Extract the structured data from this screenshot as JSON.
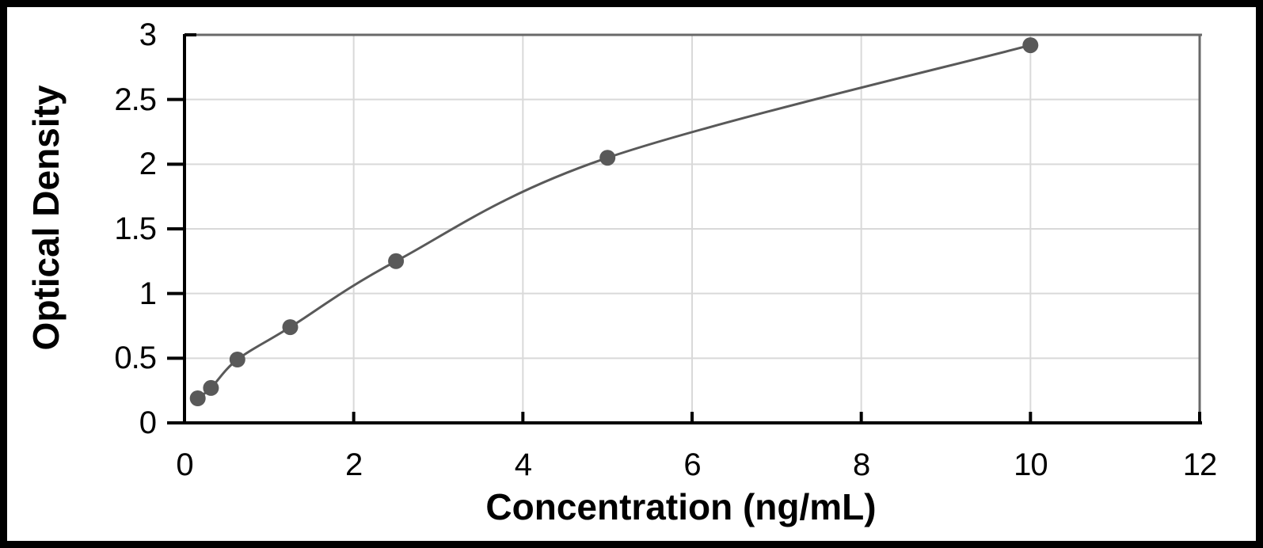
{
  "chart_data": {
    "type": "scatter",
    "description": "Standard curve: smooth line with round markers",
    "xlabel": "Concentration (ng/mL)",
    "ylabel": "Optical Density",
    "xlim": [
      0,
      12
    ],
    "ylim": [
      0,
      3
    ],
    "x_ticks": [
      0,
      2,
      4,
      6,
      8,
      10,
      12
    ],
    "x_tick_labels": [
      "0",
      "2",
      "4",
      "6",
      "8",
      "10",
      "12"
    ],
    "y_ticks": [
      0,
      0.5,
      1,
      1.5,
      2,
      2.5,
      3
    ],
    "y_tick_labels": [
      "0",
      "0.5",
      "1",
      "1.5",
      "2",
      "2.5",
      "3"
    ],
    "grid": true,
    "legend": false,
    "series": [
      {
        "name": "standard-curve",
        "marker": "circle",
        "line": "smooth",
        "points": [
          {
            "x": 0.156,
            "y": 0.19
          },
          {
            "x": 0.313,
            "y": 0.27
          },
          {
            "x": 0.625,
            "y": 0.49
          },
          {
            "x": 1.25,
            "y": 0.74
          },
          {
            "x": 2.5,
            "y": 1.25
          },
          {
            "x": 5,
            "y": 2.05
          },
          {
            "x": 10,
            "y": 2.92
          }
        ]
      }
    ],
    "colors": {
      "curve": "#595959",
      "marker": "#595959",
      "gridline": "#d9d9d9",
      "plot_border": "#696969",
      "axis": "#000000",
      "text": "#000000",
      "background": "#ffffff",
      "frame": "#000000"
    }
  }
}
